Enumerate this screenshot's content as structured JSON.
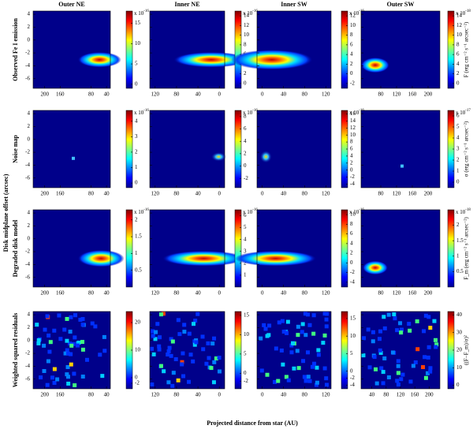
{
  "figure": {
    "columns": [
      "Outer NE",
      "Inner NE",
      "Inner SW",
      "Outer SW"
    ],
    "rows": [
      "Observed Fe I emission",
      "Noise map",
      "Degraded disk model",
      "Weighted squared residuals"
    ],
    "ylabel": "Disk midplane offset (arcsec)",
    "xlabel": "Projected distance from star (AU)",
    "cbar_labels": [
      "F (erg cm⁻² s⁻¹ arcsec⁻²)",
      "σ (erg cm⁻² s⁻¹ arcsec⁻²)",
      "F_m (erg cm⁻² s⁻¹ arcsec⁻²)",
      "((F−F_m)/σ)²"
    ],
    "ylim": [
      -7.5,
      4.5
    ],
    "yticks": [
      -6,
      -4,
      -2,
      0,
      2,
      4
    ],
    "panels": [
      [
        {
          "type": "heatmap",
          "xlim": [
            230,
            30
          ],
          "xticks": [
            200,
            160,
            80,
            40
          ],
          "clim": [
            -1,
            18
          ],
          "cticks": [
            0,
            5,
            10,
            15
          ],
          "scale": {
            "base": "x 10",
            "exp": "-16"
          }
        },
        {
          "type": "heatmap",
          "xlim": [
            130,
            -10
          ],
          "xticks": [
            120,
            80,
            40,
            0
          ],
          "clim": [
            -1,
            15
          ],
          "cticks": [
            0,
            2,
            4,
            6,
            8,
            10,
            12,
            14
          ],
          "scale": {
            "base": "x 10",
            "exp": "-16"
          }
        },
        {
          "type": "heatmap",
          "xlim": [
            -10,
            130
          ],
          "xticks": [
            0,
            40,
            80,
            120
          ],
          "clim": [
            -3,
            13
          ],
          "cticks": [
            -2,
            0,
            2,
            4,
            6,
            8,
            10,
            12
          ],
          "scale": {
            "base": "x 10",
            "exp": "-16"
          }
        },
        {
          "type": "heatmap",
          "xlim": [
            30,
            230
          ],
          "xticks": [
            80,
            120,
            160,
            200
          ],
          "clim": [
            -1,
            15
          ],
          "cticks": [
            0,
            2,
            4,
            6,
            8,
            10,
            12,
            14
          ],
          "scale": {
            "base": "x 10",
            "exp": "-18"
          }
        }
      ],
      [
        {
          "type": "heatmap",
          "xlim": [
            230,
            30
          ],
          "xticks": [
            200,
            160,
            80,
            40
          ],
          "clim": [
            -0.3,
            4.7
          ],
          "cticks": [
            0,
            1,
            2,
            3,
            4
          ],
          "scale": {
            "base": "x 10",
            "exp": "-16"
          }
        },
        {
          "type": "heatmap",
          "xlim": [
            130,
            -10
          ],
          "xticks": [
            120,
            80,
            40,
            0
          ],
          "clim": [
            -3.5,
            9
          ],
          "cticks": [
            -2,
            0,
            2,
            4,
            6,
            8
          ],
          "scale": {
            "base": "x 10",
            "exp": "-16"
          }
        },
        {
          "type": "heatmap",
          "xlim": [
            -10,
            130
          ],
          "xticks": [
            0,
            40,
            80,
            120
          ],
          "clim": [
            -5,
            17
          ],
          "cticks": [
            -4,
            -2,
            0,
            2,
            4,
            6,
            8,
            10,
            12,
            14,
            16
          ],
          "scale": {
            "base": "x 10",
            "exp": "-16"
          }
        },
        {
          "type": "heatmap",
          "xlim": [
            30,
            230
          ],
          "xticks": [
            80,
            120,
            160,
            200
          ],
          "clim": [
            -0.5,
            6.5
          ],
          "cticks": [
            0,
            1,
            2,
            3,
            4,
            5,
            6
          ],
          "scale": {
            "base": "x 10",
            "exp": "-17"
          }
        }
      ],
      [
        {
          "type": "heatmap",
          "xlim": [
            230,
            30
          ],
          "xticks": [
            200,
            160,
            80,
            40
          ],
          "clim": [
            0,
            2.3
          ],
          "cticks": [
            0.5,
            1,
            1.5,
            2
          ],
          "scale": {
            "base": "x 10",
            "exp": "-16"
          }
        },
        {
          "type": "heatmap",
          "xlim": [
            130,
            -10
          ],
          "xticks": [
            120,
            80,
            40,
            0
          ],
          "clim": [
            0,
            6.5
          ],
          "cticks": [
            1,
            2,
            3,
            4,
            5,
            6
          ],
          "scale": {
            "base": "x 10",
            "exp": "-16"
          }
        },
        {
          "type": "heatmap",
          "xlim": [
            -10,
            130
          ],
          "xticks": [
            0,
            40,
            80,
            120
          ],
          "clim": [
            -5,
            11
          ],
          "cticks": [
            -4,
            -2,
            0,
            2,
            4,
            6,
            8,
            10
          ],
          "scale": {
            "base": "x 10",
            "exp": "-16"
          }
        },
        {
          "type": "heatmap",
          "xlim": [
            30,
            230
          ],
          "xticks": [
            80,
            120,
            160,
            200
          ],
          "clim": [
            0,
            2.5
          ],
          "cticks": [
            0.5,
            1,
            1.5,
            2
          ],
          "scale": {
            "base": "x 10",
            "exp": "-18"
          }
        }
      ],
      [
        {
          "type": "heatmap",
          "xlim": [
            230,
            30
          ],
          "xticks": [
            200,
            160,
            80,
            40
          ],
          "clim": [
            -4,
            24
          ],
          "cticks": [
            -2,
            0,
            10,
            20
          ]
        },
        {
          "type": "heatmap",
          "xlim": [
            130,
            -10
          ],
          "xticks": [
            120,
            80,
            40,
            0
          ],
          "clim": [
            -4,
            16
          ],
          "cticks": [
            -2,
            0,
            5,
            10,
            15
          ]
        },
        {
          "type": "heatmap",
          "xlim": [
            -10,
            130
          ],
          "xticks": [
            0,
            40,
            80,
            120
          ],
          "clim": [
            -5,
            17
          ],
          "cticks": [
            -4,
            -2,
            0,
            5,
            10,
            15
          ]
        },
        {
          "type": "heatmap",
          "xlim": [
            10,
            230
          ],
          "xticks": [
            40,
            80,
            120,
            160,
            200
          ],
          "clim": [
            -2,
            42
          ],
          "cticks": [
            0,
            10,
            20,
            30,
            40
          ]
        }
      ]
    ]
  }
}
